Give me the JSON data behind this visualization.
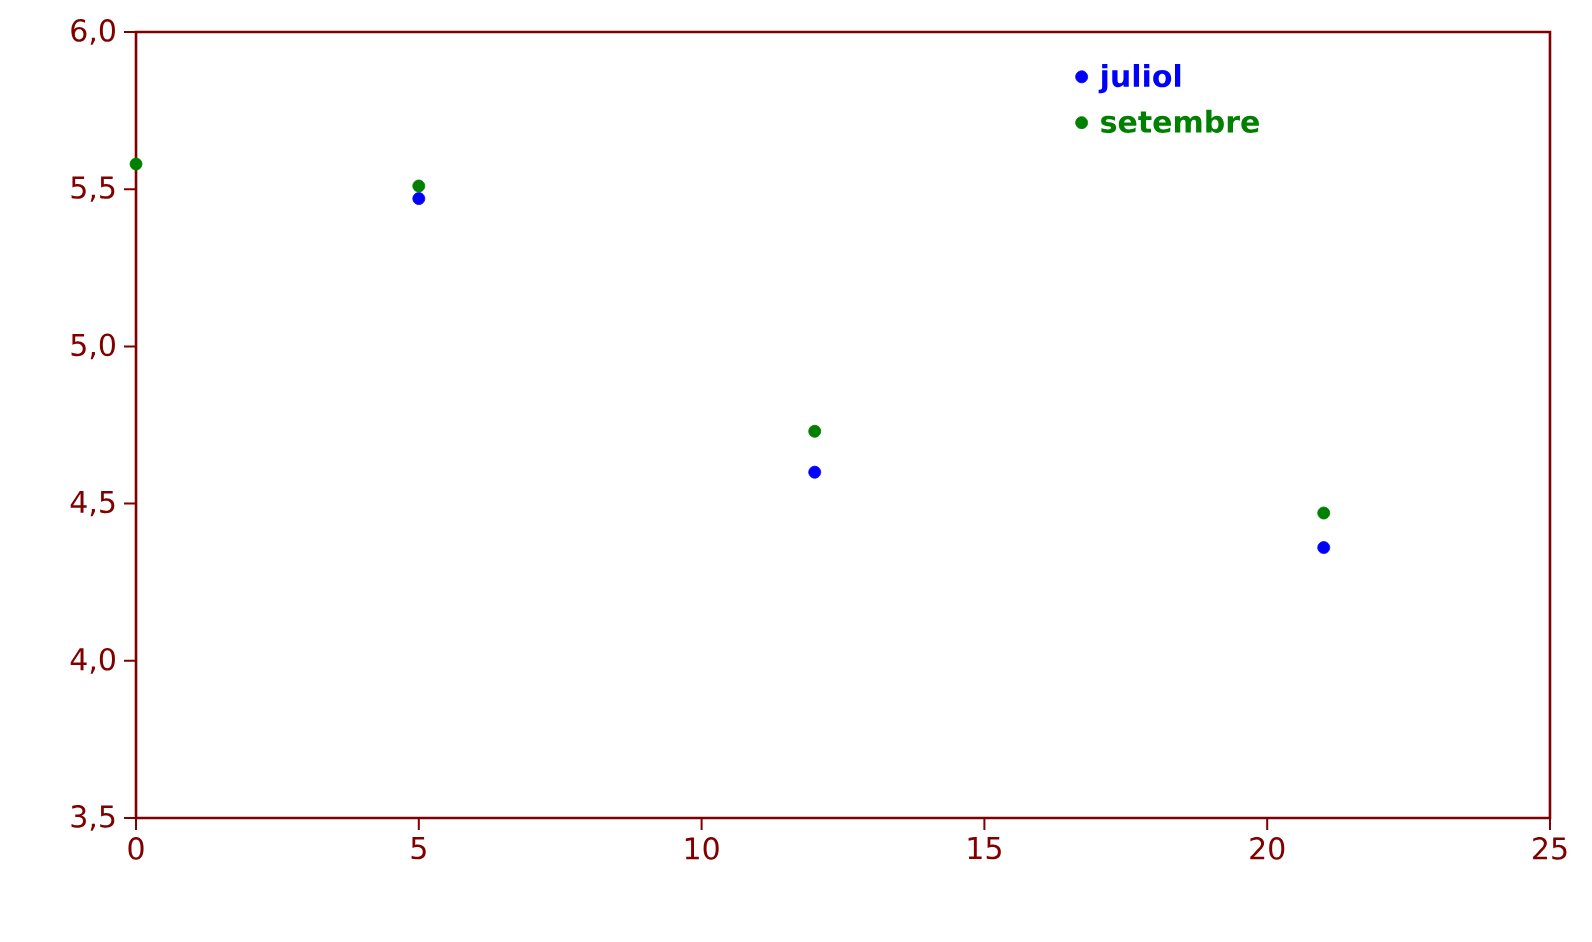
{
  "chart_data": {
    "type": "scatter",
    "x": [
      0,
      5,
      12,
      21
    ],
    "series": [
      {
        "name": "juliol",
        "color": "#0000ff",
        "values": [
          null,
          5.47,
          4.6,
          4.36
        ]
      },
      {
        "name": "setembre",
        "color": "#008000",
        "values": [
          5.58,
          5.51,
          4.73,
          4.47
        ]
      }
    ],
    "xlim": [
      0,
      25
    ],
    "xticks": [
      0,
      5,
      10,
      15,
      20,
      25
    ],
    "ylim": [
      3.5,
      6.0
    ],
    "yticks": [
      {
        "value": 3.5,
        "label": "3,5"
      },
      {
        "value": 4.0,
        "label": "4,0"
      },
      {
        "value": 4.5,
        "label": "4,5"
      },
      {
        "value": 5.0,
        "label": "5,0"
      },
      {
        "value": 5.5,
        "label": "5,5"
      },
      {
        "value": 6.0,
        "label": "6,0"
      }
    ],
    "legend": "top right",
    "marker": "circle",
    "grid": false
  }
}
